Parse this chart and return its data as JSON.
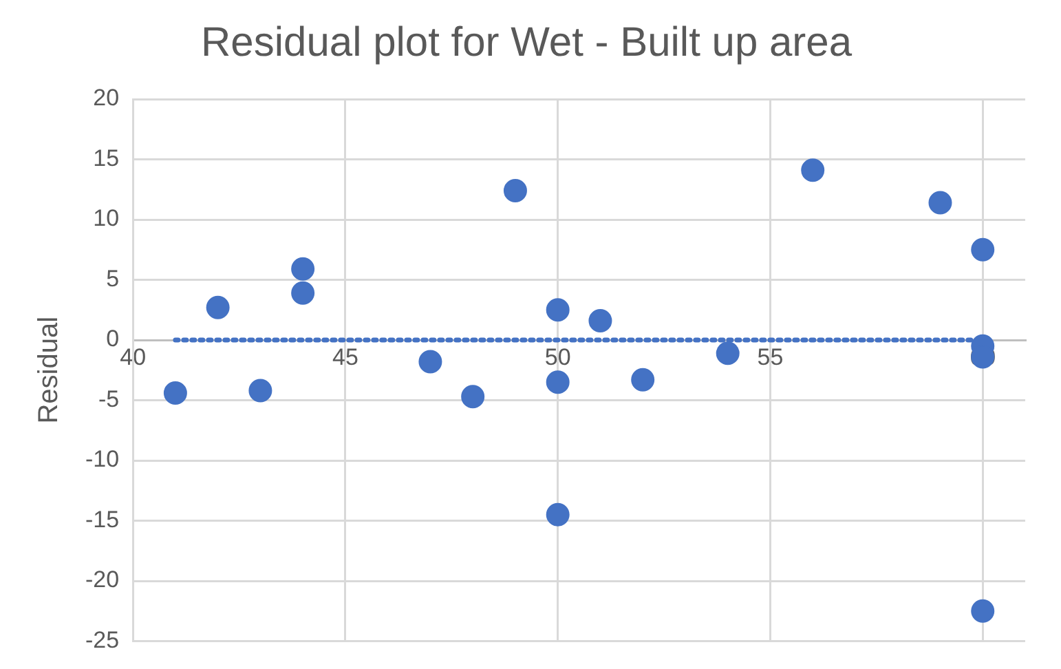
{
  "chart_data": {
    "type": "scatter",
    "title": "Residual plot for Wet - Built up area",
    "ylabel": "Residual",
    "xlim": [
      40,
      61
    ],
    "xticks": [
      40,
      45,
      50,
      55,
      60
    ],
    "ylim": [
      -25,
      20
    ],
    "yticks": [
      -25,
      -20,
      -15,
      -10,
      -5,
      0,
      5,
      10,
      15,
      20
    ],
    "grid": true,
    "legend": false,
    "marker": "circle",
    "series": [
      {
        "type": "scatter",
        "color": "#4472c4",
        "x": [
          41,
          42,
          43,
          44,
          44,
          47,
          48,
          49,
          50,
          50,
          50,
          51,
          52,
          54,
          56,
          59,
          60,
          60,
          60,
          60
        ],
        "values": [
          -4.4,
          2.7,
          -4.2,
          5.9,
          3.9,
          -1.8,
          -4.7,
          12.4,
          2.5,
          -3.5,
          -14.5,
          1.6,
          -3.3,
          -1.1,
          14.1,
          11.4,
          7.5,
          -0.5,
          -1.4,
          -22.5
        ]
      },
      {
        "type": "line",
        "color": "#4472c4",
        "line_style": "dotted",
        "marker": "none",
        "x": [
          41,
          60
        ],
        "values": [
          0,
          0
        ]
      }
    ]
  }
}
